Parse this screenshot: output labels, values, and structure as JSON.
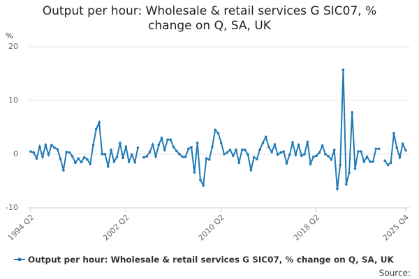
{
  "chart_data": {
    "type": "line",
    "title": "Output per hour: Wholesale & retail services G SIC07, % change on Q, SA, UK",
    "y_label": "%",
    "source": "Source:",
    "categories": [
      "1994 Q2",
      null,
      null,
      null,
      null,
      null,
      null,
      null,
      null,
      null,
      null,
      null,
      null,
      null,
      null,
      null,
      null,
      null,
      null,
      null,
      null,
      null,
      null,
      null,
      null,
      null,
      null,
      null,
      null,
      null,
      null,
      null,
      "2002 Q2",
      null,
      null,
      null,
      null,
      null,
      null,
      null,
      null,
      null,
      null,
      null,
      null,
      null,
      null,
      null,
      null,
      null,
      null,
      null,
      null,
      null,
      null,
      null,
      null,
      null,
      null,
      null,
      null,
      null,
      null,
      null,
      "2010 Q2",
      null,
      null,
      null,
      null,
      null,
      null,
      null,
      null,
      null,
      null,
      null,
      null,
      null,
      null,
      null,
      null,
      null,
      null,
      null,
      null,
      null,
      null,
      null,
      null,
      null,
      null,
      null,
      null,
      null,
      null,
      null,
      "2018 Q2",
      null,
      null,
      null,
      null,
      null,
      null,
      null,
      null,
      null,
      null,
      null,
      null,
      null,
      null,
      null,
      null,
      null,
      null,
      null,
      null,
      null,
      null,
      null,
      null,
      null,
      null,
      null,
      null,
      null,
      "2025 Q4"
    ],
    "series": [
      {
        "name": "Output per hour: Wholesale & retail services G SIC07, % change on Q, SA, UK",
        "color": "#1f7ab5",
        "values": [
          0.5,
          0.3,
          -0.8,
          1.4,
          -0.5,
          1.7,
          -0.1,
          1.7,
          1.2,
          0.9,
          -0.9,
          -3.0,
          0.4,
          0.3,
          -0.4,
          -1.6,
          -0.8,
          -1.5,
          -0.6,
          -1.0,
          -1.8,
          1.7,
          4.7,
          5.9,
          0.0,
          0.0,
          -2.3,
          0.8,
          -1.4,
          -0.5,
          2.1,
          -0.7,
          1.4,
          -1.4,
          -0.1,
          -1.5,
          1.2,
          null,
          -0.6,
          -0.4,
          0.4,
          1.8,
          -0.4,
          1.7,
          3.0,
          0.8,
          2.7,
          2.7,
          1.3,
          0.6,
          0.0,
          -0.5,
          -0.5,
          1.0,
          1.3,
          -3.4,
          2.1,
          -4.8,
          -5.8,
          -0.8,
          -1.0,
          1.4,
          4.5,
          3.9,
          2.1,
          0.0,
          0.3,
          0.8,
          -0.3,
          0.8,
          -1.6,
          0.8,
          0.8,
          -0.1,
          -3.0,
          -0.6,
          -0.9,
          0.9,
          2.1,
          3.2,
          1.3,
          0.4,
          1.8,
          -0.1,
          0.3,
          0.5,
          -1.7,
          -0.1,
          2.2,
          -0.1,
          1.7,
          -0.3,
          0.0,
          2.3,
          -1.8,
          -0.5,
          -0.3,
          0.3,
          1.6,
          0.0,
          -0.4,
          -1.0,
          0.8,
          -6.5,
          -2.0,
          15.7,
          -5.6,
          -3.5,
          7.8,
          -2.7,
          0.5,
          0.5,
          -1.4,
          -0.5,
          -1.4,
          -1.4,
          1.0,
          1.0,
          null,
          -1.2,
          -2.0,
          -1.6,
          3.9,
          1.2,
          -0.6,
          1.9,
          0.7
        ]
      }
    ],
    "ylim": [
      -10,
      20
    ],
    "yticks": [
      -10,
      0,
      10,
      20
    ],
    "grid": true
  }
}
